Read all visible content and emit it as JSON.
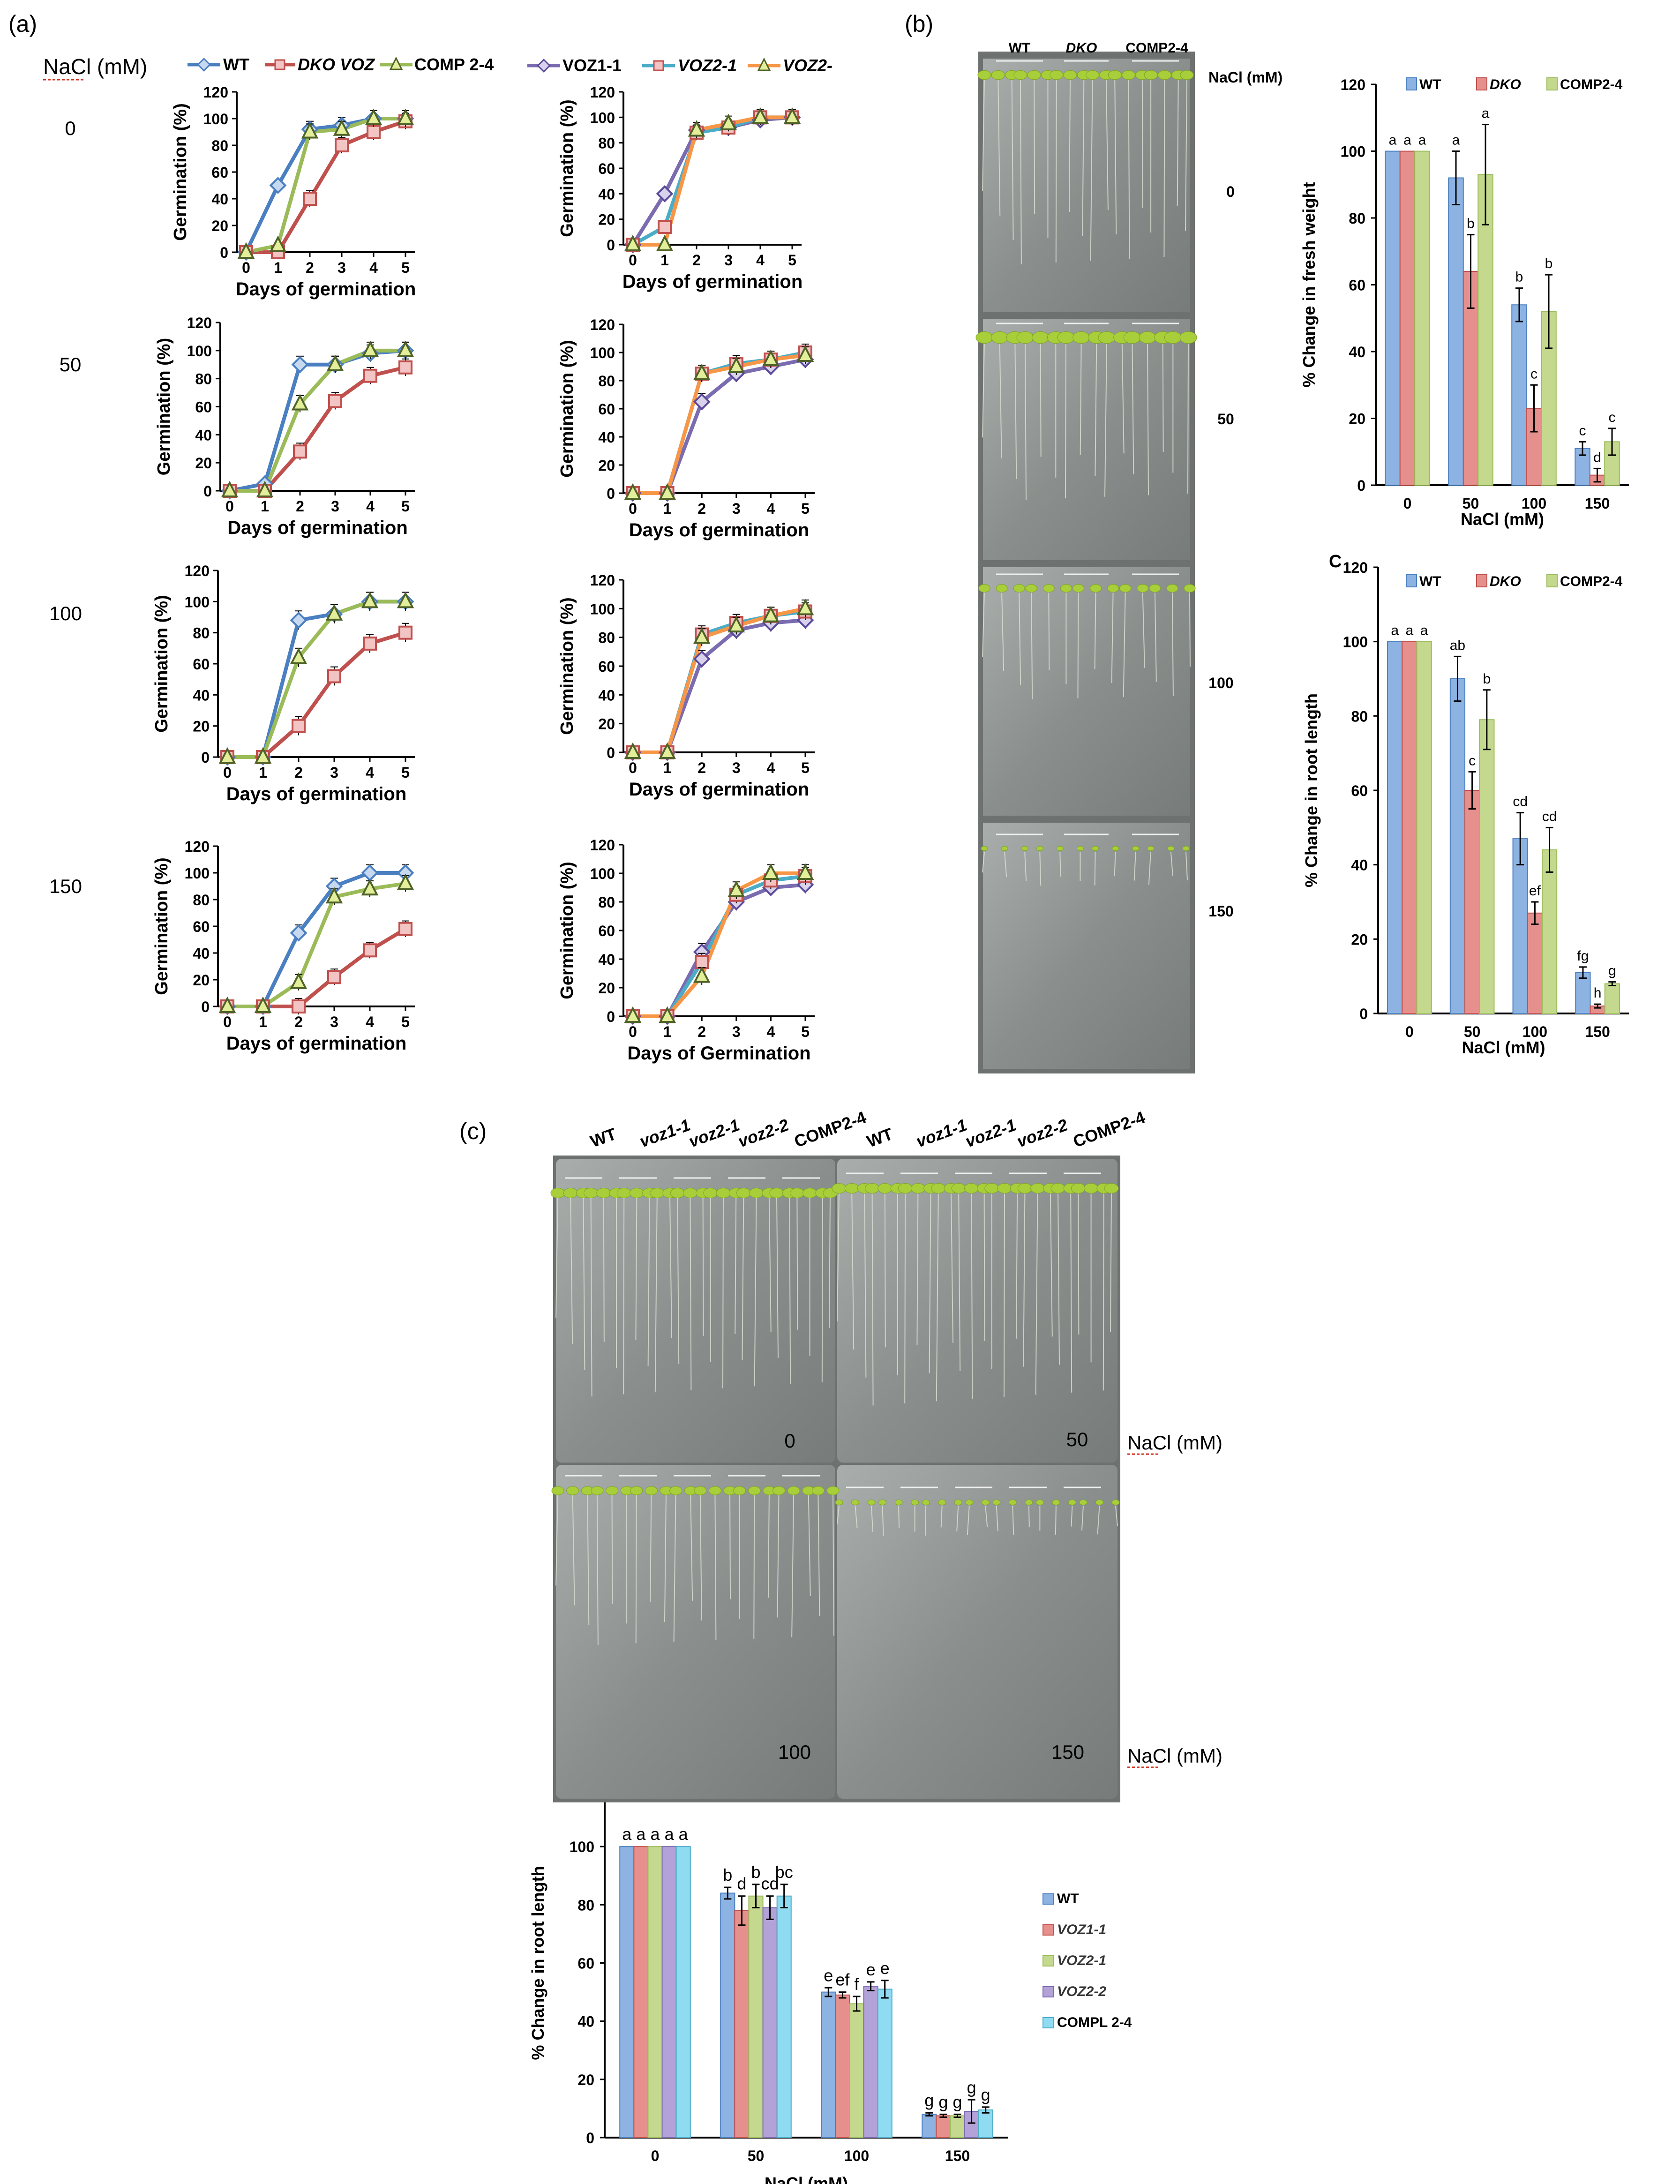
{
  "panel_labels": {
    "a": "(a)",
    "b": "(b)",
    "c": "(c)"
  },
  "colors": {
    "wt": "#4a7fc1",
    "dko": "#c0504d",
    "comp": "#9bbb59",
    "voz1": "#7b6bb0",
    "voz2_1": "#4bacc6",
    "voz2_2": "#f79646",
    "bar_wt": "#8db3e2",
    "bar_dko": "#e6908d",
    "bar_comp": "#c4d98e",
    "bar_voz22": "#b3a2d7",
    "bar_compl": "#8fdcf2"
  },
  "panel_a": {
    "nacl_header": "NaCl (mM)",
    "legend_left": [
      "WT",
      "DKO VOZ",
      "COMP 2-4"
    ],
    "legend_right": [
      "VOZ1-1",
      "VOZ2-1",
      "VOZ2-"
    ],
    "row_labels": [
      "0",
      "50",
      "100",
      "150"
    ]
  },
  "panel_b": {
    "plate_headers": [
      "WT",
      "DKO",
      "COMP2-4"
    ],
    "nacl_header": "NaCl (mM)",
    "row_labels": [
      "0",
      "50",
      "100",
      "150"
    ]
  },
  "panel_c": {
    "plate_headers": [
      "WT",
      "voz1-1",
      "voz2-1",
      "voz2-2",
      "COMP2-4",
      "WT",
      "voz1-1",
      "voz2-1",
      "voz2-2",
      "COMP2-4"
    ],
    "plate_labels": [
      "0",
      "50",
      "100",
      "150"
    ],
    "nacl_label_top": "NaCl (mM)",
    "nacl_label_bottom": "NaCl (mM)"
  },
  "chart_data": [
    {
      "id": "a1",
      "type": "line",
      "ylabel": "Germination (%)",
      "xlabel": "Days of germination",
      "x": [
        0,
        1,
        2,
        3,
        4,
        5
      ],
      "ylim": [
        0,
        120
      ],
      "series": [
        {
          "name": "WT",
          "values": [
            0,
            50,
            92,
            95,
            100,
            100
          ]
        },
        {
          "name": "DKO VOZ",
          "values": [
            0,
            0,
            40,
            80,
            90,
            98
          ]
        },
        {
          "name": "COMP 2-4",
          "values": [
            0,
            5,
            90,
            92,
            100,
            100
          ]
        }
      ]
    },
    {
      "id": "a2",
      "type": "line",
      "ylabel": "Germination  (%)",
      "xlabel": "Days of germination",
      "x": [
        0,
        1,
        2,
        3,
        4,
        5
      ],
      "ylim": [
        0,
        120
      ],
      "series": [
        {
          "name": "VOZ1-1",
          "values": [
            0,
            40,
            90,
            92,
            98,
            100
          ]
        },
        {
          "name": "VOZ2-1",
          "values": [
            0,
            14,
            88,
            92,
            100,
            100
          ]
        },
        {
          "name": "VOZ2-",
          "values": [
            0,
            0,
            90,
            95,
            100,
            100
          ]
        }
      ]
    },
    {
      "id": "a3",
      "type": "line",
      "ylabel": "Germination (%)",
      "xlabel": "Days of germination",
      "x": [
        0,
        1,
        2,
        3,
        4,
        5
      ],
      "ylim": [
        0,
        120
      ],
      "series": [
        {
          "name": "WT",
          "values": [
            0,
            5,
            90,
            90,
            98,
            100
          ]
        },
        {
          "name": "DKO VOZ",
          "values": [
            0,
            0,
            28,
            64,
            82,
            88
          ]
        },
        {
          "name": "COMP 2-4",
          "values": [
            0,
            0,
            62,
            90,
            100,
            100
          ]
        }
      ]
    },
    {
      "id": "a4",
      "type": "line",
      "ylabel": "Germination (%)",
      "xlabel": "Days of germination",
      "x": [
        0,
        1,
        2,
        3,
        4,
        5
      ],
      "ylim": [
        0,
        120
      ],
      "series": [
        {
          "name": "VOZ1-1",
          "values": [
            0,
            0,
            65,
            85,
            90,
            95
          ]
        },
        {
          "name": "VOZ2-1",
          "values": [
            0,
            0,
            85,
            92,
            95,
            100
          ]
        },
        {
          "name": "VOZ2-",
          "values": [
            0,
            0,
            85,
            90,
            95,
            98
          ]
        }
      ]
    },
    {
      "id": "a5",
      "type": "line",
      "ylabel": "Germination (%)",
      "xlabel": "Days of germination",
      "x": [
        0,
        1,
        2,
        3,
        4,
        5
      ],
      "ylim": [
        0,
        120
      ],
      "series": [
        {
          "name": "WT",
          "values": [
            0,
            0,
            88,
            92,
            100,
            100
          ]
        },
        {
          "name": "DKO VOZ",
          "values": [
            0,
            0,
            20,
            52,
            73,
            80
          ]
        },
        {
          "name": "COMP 2-4",
          "values": [
            0,
            0,
            64,
            92,
            100,
            100
          ]
        }
      ]
    },
    {
      "id": "a6",
      "type": "line",
      "ylabel": "Germination (%)",
      "xlabel": "Days of germination",
      "x": [
        0,
        1,
        2,
        3,
        4,
        5
      ],
      "ylim": [
        0,
        120
      ],
      "series": [
        {
          "name": "VOZ1-1",
          "values": [
            0,
            0,
            65,
            85,
            90,
            92
          ]
        },
        {
          "name": "VOZ2-1",
          "values": [
            0,
            0,
            82,
            90,
            95,
            98
          ]
        },
        {
          "name": "VOZ2-",
          "values": [
            0,
            0,
            80,
            88,
            95,
            100
          ]
        }
      ]
    },
    {
      "id": "a7",
      "type": "line",
      "ylabel": "Germination (%)",
      "xlabel": "Days of germination",
      "x": [
        0,
        1,
        2,
        3,
        4,
        5
      ],
      "ylim": [
        0,
        120
      ],
      "series": [
        {
          "name": "WT",
          "values": [
            0,
            0,
            55,
            90,
            100,
            100
          ]
        },
        {
          "name": "DKO VOZ",
          "values": [
            0,
            0,
            0,
            22,
            42,
            58
          ]
        },
        {
          "name": "COMP 2-4",
          "values": [
            0,
            0,
            18,
            82,
            88,
            92
          ]
        }
      ]
    },
    {
      "id": "a8",
      "type": "line",
      "ylabel": "Germination (%)",
      "xlabel": "Days of Germination",
      "x": [
        0,
        1,
        2,
        3,
        4,
        5
      ],
      "ylim": [
        0,
        120
      ],
      "series": [
        {
          "name": "VOZ1-1",
          "values": [
            0,
            0,
            45,
            80,
            90,
            92
          ]
        },
        {
          "name": "VOZ2-1",
          "values": [
            0,
            0,
            38,
            85,
            95,
            98
          ]
        },
        {
          "name": "VOZ2-",
          "values": [
            0,
            0,
            28,
            88,
            100,
            100
          ]
        }
      ]
    },
    {
      "id": "b_fw",
      "type": "bar",
      "title": "",
      "ylabel": "% Change  in fresh weight",
      "xlabel": "NaCl (mM)",
      "categories": [
        "0",
        "50",
        "100",
        "150"
      ],
      "ylim": [
        0,
        120
      ],
      "legend": [
        "WT",
        "DKO",
        "COMP2-4"
      ],
      "series": [
        {
          "name": "WT",
          "values": [
            100,
            92,
            54,
            11
          ]
        },
        {
          "name": "DKO",
          "values": [
            100,
            64,
            23,
            3
          ]
        },
        {
          "name": "COMP2-4",
          "values": [
            100,
            93,
            52,
            13
          ]
        }
      ],
      "errors": [
        [
          0,
          8,
          5,
          2
        ],
        [
          0,
          11,
          7,
          2
        ],
        [
          0,
          15,
          11,
          4
        ]
      ],
      "letters": [
        [
          "a",
          "a",
          "b",
          "c"
        ],
        [
          "a",
          "b",
          "c",
          "d"
        ],
        [
          "a",
          "a",
          "b",
          "c"
        ]
      ]
    },
    {
      "id": "b_rl",
      "type": "bar",
      "title": "C",
      "ylabel": "% Change in  root length",
      "xlabel": "NaCl (mM)",
      "categories": [
        "0",
        "50",
        "100",
        "150"
      ],
      "ylim": [
        0,
        120
      ],
      "legend": [
        "WT",
        "DKO",
        "COMP2-4"
      ],
      "series": [
        {
          "name": "WT",
          "values": [
            100,
            90,
            47,
            11
          ]
        },
        {
          "name": "DKO",
          "values": [
            100,
            60,
            27,
            2
          ]
        },
        {
          "name": "COMP2-4",
          "values": [
            100,
            79,
            44,
            8
          ]
        }
      ],
      "errors": [
        [
          0,
          6,
          7,
          1.5
        ],
        [
          0,
          5,
          3,
          0.5
        ],
        [
          0,
          8,
          6,
          0.5
        ]
      ],
      "letters": [
        [
          "a",
          "ab",
          "cd",
          "fg"
        ],
        [
          "a",
          "c",
          "ef",
          "h"
        ],
        [
          "a",
          "b",
          "cd",
          "g"
        ]
      ]
    },
    {
      "id": "c_rl",
      "type": "bar",
      "ylabel": "% Change in root length",
      "xlabel": "NaCl (mM)",
      "categories": [
        "0",
        "50",
        "100",
        "150"
      ],
      "ylim": [
        0,
        120
      ],
      "legend": [
        "WT",
        "VOZ1-1",
        "VOZ2-1",
        "VOZ2-2",
        "COMPL 2-4"
      ],
      "series": [
        {
          "name": "WT",
          "values": [
            100,
            84,
            50,
            8
          ]
        },
        {
          "name": "VOZ1-1",
          "values": [
            100,
            78,
            49,
            7.5
          ]
        },
        {
          "name": "VOZ2-1",
          "values": [
            100,
            83,
            46,
            7.5
          ]
        },
        {
          "name": "VOZ2-2",
          "values": [
            100,
            79,
            52,
            9
          ]
        },
        {
          "name": "COMPL 2-4",
          "values": [
            100,
            83,
            51,
            9.5
          ]
        }
      ],
      "errors": [
        [
          0,
          2,
          1.5,
          0.5
        ],
        [
          0,
          5,
          1,
          0.5
        ],
        [
          0,
          4,
          2.5,
          0.5
        ],
        [
          0,
          4,
          1.5,
          4
        ],
        [
          0,
          4,
          3,
          1
        ]
      ],
      "letters": [
        [
          "a",
          "b",
          "e",
          "g"
        ],
        [
          "a",
          "d",
          "ef",
          "g"
        ],
        [
          "a",
          "b",
          "f",
          "g"
        ],
        [
          "a",
          "cd",
          "e",
          "g"
        ],
        [
          "a",
          "bc",
          "e",
          "g"
        ]
      ]
    }
  ]
}
